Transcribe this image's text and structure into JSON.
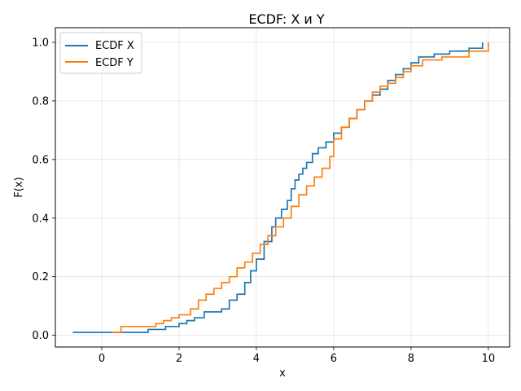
{
  "chart_data": {
    "type": "line",
    "title": "ECDF: X и Y",
    "xlabel": "x",
    "ylabel": "F(x)",
    "xlim": [
      -1.2,
      10.55
    ],
    "ylim": [
      -0.04,
      1.05
    ],
    "xticks": [
      0,
      2,
      4,
      6,
      8,
      10
    ],
    "xtick_labels": [
      "0",
      "2",
      "4",
      "6",
      "8",
      "10"
    ],
    "yticks": [
      0.0,
      0.2,
      0.4,
      0.6,
      0.8,
      1.0
    ],
    "ytick_labels": [
      "0.0",
      "0.2",
      "0.4",
      "0.6",
      "0.8",
      "1.0"
    ],
    "grid": true,
    "legend_position": "top-left",
    "series": [
      {
        "name": "ECDF X",
        "color": "#1f77b4",
        "x": [
          -0.75,
          1.2,
          1.65,
          2.0,
          2.2,
          2.4,
          2.65,
          3.1,
          3.3,
          3.5,
          3.7,
          3.85,
          4.0,
          4.2,
          4.4,
          4.5,
          4.65,
          4.8,
          4.9,
          5.0,
          5.1,
          5.2,
          5.3,
          5.45,
          5.6,
          5.8,
          6.0,
          6.2,
          6.4,
          6.6,
          6.8,
          7.0,
          7.2,
          7.4,
          7.6,
          7.8,
          8.0,
          8.2,
          8.6,
          9.0,
          9.5,
          9.85
        ],
        "y": [
          0.01,
          0.02,
          0.03,
          0.04,
          0.05,
          0.06,
          0.08,
          0.09,
          0.12,
          0.14,
          0.18,
          0.22,
          0.26,
          0.32,
          0.37,
          0.4,
          0.43,
          0.46,
          0.5,
          0.53,
          0.55,
          0.57,
          0.59,
          0.62,
          0.64,
          0.66,
          0.69,
          0.71,
          0.74,
          0.77,
          0.8,
          0.82,
          0.84,
          0.87,
          0.89,
          0.91,
          0.93,
          0.95,
          0.96,
          0.97,
          0.98,
          1.0
        ]
      },
      {
        "name": "ECDF Y",
        "color": "#ff7f0e",
        "x": [
          0.25,
          0.5,
          1.4,
          1.6,
          1.8,
          2.0,
          2.3,
          2.5,
          2.7,
          2.9,
          3.1,
          3.3,
          3.5,
          3.7,
          3.9,
          4.1,
          4.3,
          4.5,
          4.7,
          4.9,
          5.1,
          5.3,
          5.5,
          5.7,
          5.9,
          6.0,
          6.2,
          6.4,
          6.6,
          6.8,
          7.0,
          7.2,
          7.4,
          7.6,
          7.8,
          8.0,
          8.3,
          8.8,
          9.5,
          10.0
        ],
        "y": [
          0.01,
          0.03,
          0.04,
          0.05,
          0.06,
          0.07,
          0.09,
          0.12,
          0.14,
          0.16,
          0.18,
          0.2,
          0.23,
          0.25,
          0.28,
          0.31,
          0.34,
          0.37,
          0.4,
          0.44,
          0.48,
          0.51,
          0.54,
          0.57,
          0.61,
          0.67,
          0.71,
          0.74,
          0.77,
          0.8,
          0.83,
          0.85,
          0.86,
          0.88,
          0.9,
          0.92,
          0.94,
          0.95,
          0.97,
          1.0
        ]
      }
    ]
  }
}
